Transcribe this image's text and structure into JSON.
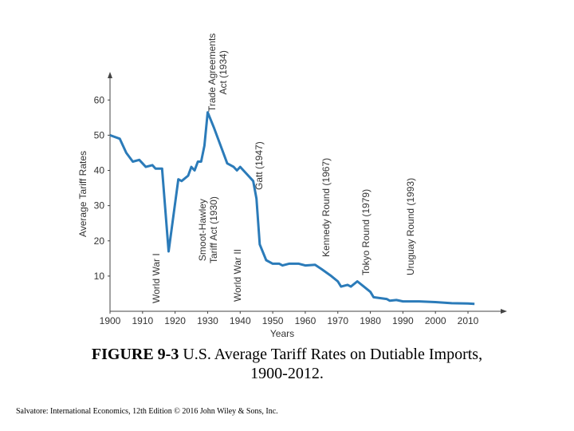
{
  "chart_data": {
    "type": "line",
    "xlabel": "Years",
    "ylabel": "Average Tariff Rates",
    "color": "#2b7bb9",
    "x": [
      1900,
      1903,
      1905,
      1907,
      1909,
      1910,
      1911,
      1913,
      1914,
      1916,
      1918,
      1921,
      1922,
      1924,
      1925,
      1926,
      1927,
      1928,
      1929,
      1930,
      1932,
      1934,
      1936,
      1938,
      1939,
      1940,
      1942,
      1944,
      1945,
      1946,
      1948,
      1950,
      1952,
      1953,
      1955,
      1958,
      1960,
      1963,
      1965,
      1968,
      1970,
      1971,
      1973,
      1974,
      1976,
      1978,
      1980,
      1981,
      1985,
      1986,
      1988,
      1990,
      1995,
      2000,
      2005,
      2010,
      2012
    ],
    "values": [
      50,
      49,
      45,
      42.5,
      43,
      42,
      41,
      41.5,
      40.5,
      40.5,
      17,
      37.5,
      37,
      38.5,
      41,
      40,
      42.5,
      42.5,
      47,
      56.5,
      52,
      47,
      42,
      41,
      40,
      41,
      39,
      37,
      32,
      19,
      14.5,
      13.5,
      13.5,
      13,
      13.5,
      13.5,
      13,
      13.2,
      12,
      10,
      8.5,
      7,
      7.5,
      7,
      8.5,
      7,
      5.5,
      4,
      3.5,
      3,
      3.2,
      2.8,
      2.8,
      2.6,
      2.3,
      2.2,
      2.1
    ],
    "xlim": [
      1900,
      2022
    ],
    "ylim": [
      0,
      68
    ],
    "xticks": [
      1900,
      1910,
      1920,
      1930,
      1940,
      1950,
      1960,
      1970,
      1980,
      1990,
      2000,
      2010
    ],
    "yticks": [
      10,
      20,
      30,
      40,
      50,
      60
    ],
    "annotations": [
      [
        "Trade Agreements",
        "Act (1934)"
      ],
      [
        "World War I"
      ],
      [
        "Smoot-Hawley",
        "Tariff Act (1930)"
      ],
      [
        "World War II"
      ],
      [
        "Gatt (1947)"
      ],
      [
        "Kennedy Round (1967)"
      ],
      [
        "Tokyo Round (1979)"
      ],
      [
        "Uruguay Round (1993)"
      ]
    ]
  },
  "caption": {
    "label": "FIGURE 9-3",
    "text": "U.S. Average Tariff Rates on Dutiable Imports,",
    "text2": "1900-2012."
  },
  "source": "Salvatore: International Economics, 12th Edition © 2016 John Wiley & Sons, Inc."
}
